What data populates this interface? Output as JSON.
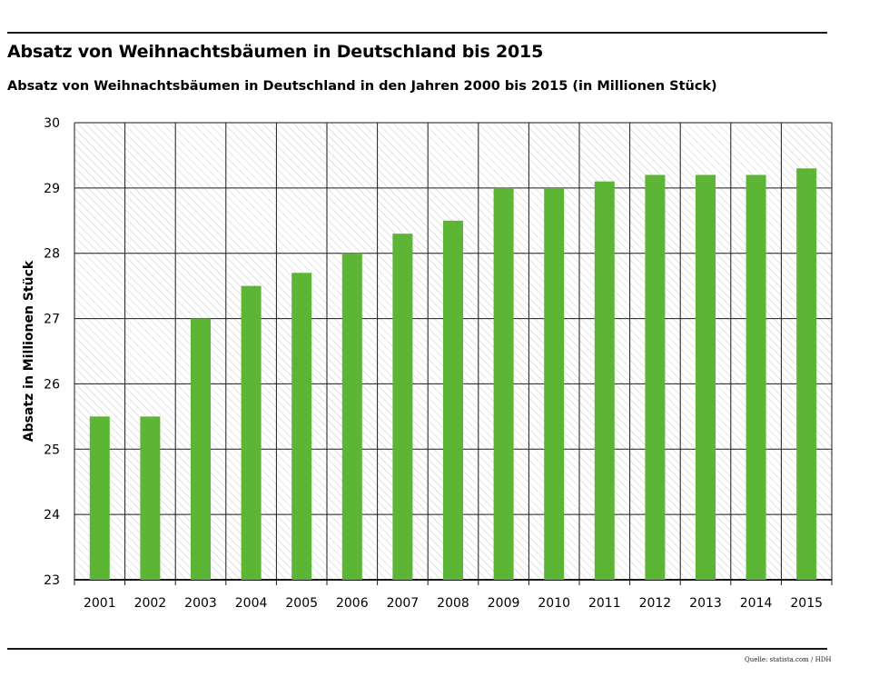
{
  "header": {
    "title": "Absatz von Weihnachtsbäumen in Deutschland bis 2015",
    "subtitle": "Absatz von Weihnachtsbäumen in Deutschland in den Jahren 2000 bis 2015 (in Millionen Stück)"
  },
  "footer": {
    "source": "Quelle: statista.com / HDH"
  },
  "colors": {
    "bar": "#5db535",
    "grid": "#1a1a1a",
    "hatch": "#c8c8c8"
  },
  "chart_data": {
    "type": "bar",
    "title": "Absatz von Weihnachtsbäumen in Deutschland bis 2015",
    "subtitle": "Absatz von Weihnachtsbäumen in Deutschland in den Jahren 2000 bis 2015 (in Millionen Stück)",
    "xlabel": "",
    "ylabel": "Absatz in Millionen Stück",
    "categories": [
      "2001",
      "2002",
      "2003",
      "2004",
      "2005",
      "2006",
      "2007",
      "2008",
      "2009",
      "2010",
      "2011",
      "2012",
      "2013",
      "2014",
      "2015"
    ],
    "values": [
      25.5,
      25.5,
      27,
      27.5,
      27.7,
      28,
      28.3,
      28.5,
      29,
      29,
      29.1,
      29.2,
      29.2,
      29.2,
      29.3
    ],
    "ylim": [
      23,
      30
    ],
    "yticks": [
      23,
      24,
      25,
      26,
      27,
      28,
      29,
      30
    ],
    "grid": true,
    "background": "hatched",
    "legend": "none"
  }
}
